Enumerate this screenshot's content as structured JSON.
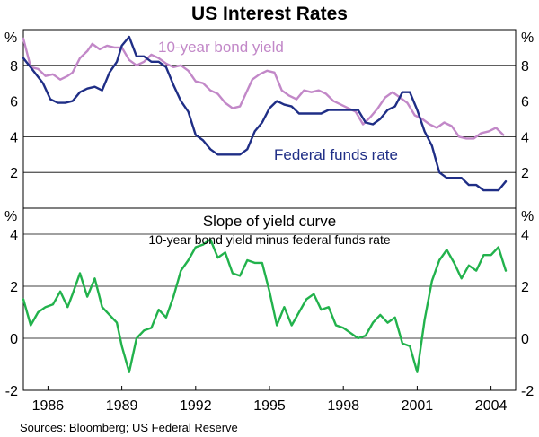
{
  "title": "US Interest Rates",
  "source": "Sources: Bloomberg; US Federal Reserve",
  "colors": {
    "bond": "#c288c8",
    "funds": "#1f2e86",
    "slope": "#22b24c",
    "grid": "#000000",
    "frame": "#000000"
  },
  "chart_data": [
    {
      "type": "line",
      "panel": "top",
      "unit": "%",
      "ylim": [
        0,
        10
      ],
      "yticks": [
        2,
        4,
        6,
        8
      ],
      "ytick_labels": [
        "2",
        "4",
        "6",
        "8"
      ],
      "grid": true,
      "series": [
        {
          "name": "10-year bond yield",
          "label": "10-year bond yield",
          "color": "#c288c8",
          "x": [
            1985.0,
            1985.3,
            1985.6,
            1985.9,
            1986.2,
            1986.5,
            1986.8,
            1987.0,
            1987.3,
            1987.6,
            1987.8,
            1988.1,
            1988.4,
            1988.7,
            1989.0,
            1989.3,
            1989.6,
            1989.9,
            1990.2,
            1990.5,
            1990.8,
            1991.1,
            1991.4,
            1991.7,
            1992.0,
            1992.3,
            1992.6,
            1992.9,
            1993.2,
            1993.5,
            1993.8,
            1994.0,
            1994.3,
            1994.6,
            1994.9,
            1995.2,
            1995.5,
            1995.8,
            1996.1,
            1996.4,
            1996.7,
            1997.0,
            1997.3,
            1997.6,
            1997.9,
            1998.2,
            1998.5,
            1998.8,
            1999.1,
            1999.4,
            1999.7,
            2000.0,
            2000.3,
            2000.6,
            2000.9,
            2001.2,
            2001.5,
            2001.8,
            2002.1,
            2002.4,
            2002.7,
            2003.0,
            2003.3,
            2003.6,
            2003.9,
            2004.2,
            2004.5
          ],
          "values": [
            9.5,
            7.9,
            7.8,
            7.4,
            7.5,
            7.2,
            7.4,
            7.6,
            8.4,
            8.8,
            9.2,
            8.9,
            9.1,
            9.0,
            9.0,
            8.3,
            8.0,
            8.2,
            8.6,
            8.4,
            8.1,
            7.9,
            8.0,
            7.7,
            7.1,
            7.0,
            6.6,
            6.4,
            5.9,
            5.6,
            5.7,
            6.3,
            7.2,
            7.5,
            7.7,
            7.6,
            6.6,
            6.3,
            6.1,
            6.6,
            6.5,
            6.6,
            6.4,
            6.0,
            5.8,
            5.6,
            5.4,
            4.7,
            5.1,
            5.6,
            6.2,
            6.5,
            6.2,
            5.9,
            5.2,
            5.0,
            4.7,
            4.5,
            4.8,
            4.6,
            4.0,
            3.9,
            3.9,
            4.2,
            4.3,
            4.5,
            4.1
          ]
        },
        {
          "name": "Federal funds rate",
          "label": "Federal funds rate",
          "color": "#1f2e86",
          "x": [
            1985.0,
            1985.4,
            1985.8,
            1986.1,
            1986.4,
            1986.7,
            1987.0,
            1987.3,
            1987.6,
            1987.9,
            1988.2,
            1988.5,
            1988.8,
            1989.0,
            1989.3,
            1989.6,
            1989.9,
            1990.2,
            1990.5,
            1990.8,
            1991.1,
            1991.4,
            1991.7,
            1992.0,
            1992.3,
            1992.6,
            1992.9,
            1993.2,
            1993.5,
            1993.8,
            1994.1,
            1994.4,
            1994.7,
            1995.0,
            1995.3,
            1995.6,
            1995.9,
            1996.2,
            1996.5,
            1996.8,
            1997.1,
            1997.4,
            1997.7,
            1998.0,
            1998.3,
            1998.6,
            1998.9,
            1999.2,
            1999.5,
            1999.8,
            2000.1,
            2000.4,
            2000.7,
            2001.0,
            2001.3,
            2001.6,
            2001.9,
            2002.2,
            2002.5,
            2002.8,
            2003.1,
            2003.4,
            2003.7,
            2004.0,
            2004.3,
            2004.6
          ],
          "values": [
            8.4,
            7.7,
            7.0,
            6.1,
            5.9,
            5.9,
            6.0,
            6.5,
            6.7,
            6.8,
            6.6,
            7.6,
            8.2,
            9.1,
            9.6,
            8.5,
            8.5,
            8.2,
            8.2,
            7.9,
            6.9,
            6.0,
            5.4,
            4.1,
            3.8,
            3.3,
            3.0,
            3.0,
            3.0,
            3.0,
            3.3,
            4.3,
            4.8,
            5.6,
            6.0,
            5.8,
            5.7,
            5.3,
            5.3,
            5.3,
            5.3,
            5.5,
            5.5,
            5.5,
            5.5,
            5.5,
            4.8,
            4.7,
            5.0,
            5.5,
            5.7,
            6.5,
            6.5,
            5.5,
            4.3,
            3.5,
            2.0,
            1.7,
            1.7,
            1.7,
            1.3,
            1.3,
            1.0,
            1.0,
            1.0,
            1.5
          ]
        }
      ]
    },
    {
      "type": "line",
      "panel": "bottom",
      "unit": "%",
      "title": "Slope of yield curve",
      "subtitle": "10-year bond yield minus federal funds rate",
      "ylim": [
        -2,
        5
      ],
      "yticks": [
        -2,
        0,
        2,
        4
      ],
      "ytick_labels": [
        "-2",
        "0",
        "2",
        "4"
      ],
      "grid": true,
      "series": [
        {
          "name": "Slope of yield curve",
          "color": "#22b24c",
          "x": [
            1985.0,
            1985.3,
            1985.6,
            1985.9,
            1986.2,
            1986.5,
            1986.8,
            1987.0,
            1987.3,
            1987.6,
            1987.9,
            1988.2,
            1988.5,
            1988.8,
            1989.0,
            1989.3,
            1989.6,
            1989.9,
            1990.2,
            1990.5,
            1990.8,
            1991.1,
            1991.4,
            1991.7,
            1992.0,
            1992.3,
            1992.6,
            1992.9,
            1993.2,
            1993.5,
            1993.8,
            1994.1,
            1994.4,
            1994.7,
            1995.0,
            1995.3,
            1995.6,
            1995.9,
            1996.2,
            1996.5,
            1996.8,
            1997.1,
            1997.4,
            1997.7,
            1998.0,
            1998.3,
            1998.6,
            1998.9,
            1999.2,
            1999.5,
            1999.8,
            2000.1,
            2000.4,
            2000.7,
            2001.0,
            2001.3,
            2001.6,
            2001.9,
            2002.2,
            2002.5,
            2002.8,
            2003.1,
            2003.4,
            2003.7,
            2004.0,
            2004.3,
            2004.6
          ],
          "values": [
            1.5,
            0.5,
            1.0,
            1.2,
            1.3,
            1.8,
            1.2,
            1.7,
            2.5,
            1.6,
            2.3,
            1.2,
            0.9,
            0.6,
            -0.3,
            -1.3,
            0.0,
            0.3,
            0.4,
            1.1,
            0.8,
            1.6,
            2.6,
            3.0,
            3.5,
            3.6,
            3.8,
            3.1,
            3.3,
            2.5,
            2.4,
            3.0,
            2.9,
            2.9,
            1.8,
            0.5,
            1.2,
            0.5,
            1.0,
            1.5,
            1.7,
            1.1,
            1.2,
            0.5,
            0.4,
            0.2,
            0.0,
            0.1,
            0.6,
            0.9,
            0.6,
            0.8,
            -0.2,
            -0.3,
            -1.3,
            0.7,
            2.2,
            3.0,
            3.4,
            2.9,
            2.3,
            2.8,
            2.6,
            3.2,
            3.2,
            3.5,
            2.6
          ]
        }
      ]
    }
  ],
  "xaxis": {
    "xlim": [
      1985,
      2005
    ],
    "tick_years": [
      1986,
      1989,
      1992,
      1995,
      1998,
      2001,
      2004
    ],
    "tick_labels": [
      "1986",
      "1989",
      "1992",
      "1995",
      "1998",
      "2001",
      "2004"
    ]
  }
}
